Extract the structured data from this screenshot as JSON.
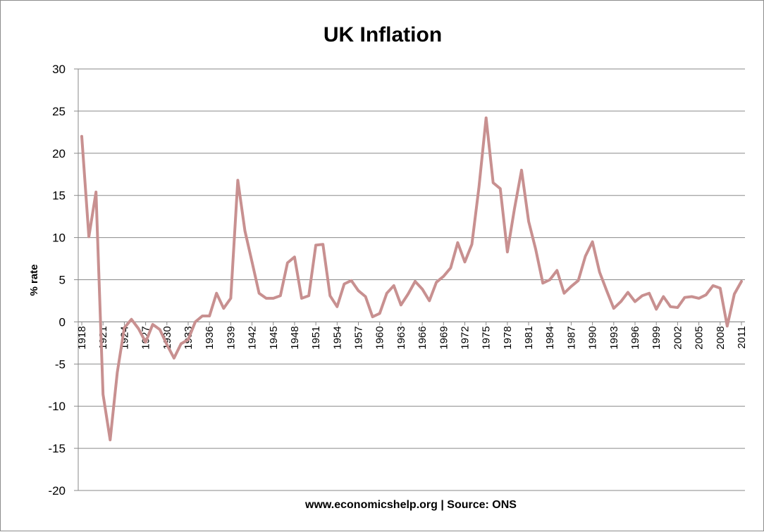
{
  "chart_data": {
    "type": "line",
    "title": "UK Inflation",
    "xlabel": "www.economicshelp.org | Source: ONS",
    "ylabel": "% rate",
    "ylim": [
      -20,
      30
    ],
    "yticks": [
      -20,
      -15,
      -10,
      -5,
      0,
      5,
      10,
      15,
      20,
      25,
      30
    ],
    "xtick_labels": [
      "1918",
      "1921",
      "1924",
      "1927",
      "1930",
      "1933",
      "1936",
      "1939",
      "1942",
      "1945",
      "1948",
      "1951",
      "1954",
      "1957",
      "1960",
      "1963",
      "1966",
      "1969",
      "1972",
      "1975",
      "1978",
      "1981",
      "1984",
      "1987",
      "1990",
      "1993",
      "1996",
      "1999",
      "2002",
      "2005",
      "2008",
      "2011"
    ],
    "grid": "horizontal",
    "legend": "none",
    "line_color": "#c89090",
    "x": [
      1918,
      1919,
      1920,
      1921,
      1922,
      1923,
      1924,
      1925,
      1926,
      1927,
      1928,
      1929,
      1930,
      1931,
      1932,
      1933,
      1934,
      1935,
      1936,
      1937,
      1938,
      1939,
      1940,
      1941,
      1942,
      1943,
      1944,
      1945,
      1946,
      1947,
      1948,
      1949,
      1950,
      1951,
      1952,
      1953,
      1954,
      1955,
      1956,
      1957,
      1958,
      1959,
      1960,
      1961,
      1962,
      1963,
      1964,
      1965,
      1966,
      1967,
      1968,
      1969,
      1970,
      1971,
      1972,
      1973,
      1974,
      1975,
      1976,
      1977,
      1978,
      1979,
      1980,
      1981,
      1982,
      1983,
      1984,
      1985,
      1986,
      1987,
      1988,
      1989,
      1990,
      1991,
      1992,
      1993,
      1994,
      1995,
      1996,
      1997,
      1998,
      1999,
      2000,
      2001,
      2002,
      2003,
      2004,
      2005,
      2006,
      2007,
      2008,
      2009,
      2010,
      2011
    ],
    "series": [
      {
        "values": [
          22.0,
          10.1,
          15.4,
          -8.6,
          -14.0,
          -6.0,
          -0.7,
          0.3,
          -0.8,
          -2.4,
          -0.3,
          -0.9,
          -2.7,
          -4.3,
          -2.6,
          -2.1,
          0.0,
          0.7,
          0.7,
          3.4,
          1.6,
          2.8,
          16.8,
          10.8,
          7.1,
          3.4,
          2.8,
          2.8,
          3.1,
          7.0,
          7.7,
          2.8,
          3.1,
          9.1,
          9.2,
          3.1,
          1.8,
          4.5,
          4.9,
          3.7,
          3.0,
          0.6,
          1.0,
          3.4,
          4.3,
          2.0,
          3.3,
          4.8,
          3.9,
          2.5,
          4.7,
          5.4,
          6.4,
          9.4,
          7.1,
          9.2,
          16.0,
          24.2,
          16.5,
          15.8,
          8.3,
          13.4,
          18.0,
          11.9,
          8.6,
          4.6,
          5.0,
          6.1,
          3.4,
          4.2,
          4.9,
          7.8,
          9.5,
          5.9,
          3.7,
          1.6,
          2.4,
          3.5,
          2.4,
          3.1,
          3.4,
          1.5,
          3.0,
          1.8,
          1.7,
          2.9,
          3.0,
          2.8,
          3.2,
          4.3,
          4.0,
          -0.5,
          3.3,
          4.8
        ]
      }
    ]
  }
}
